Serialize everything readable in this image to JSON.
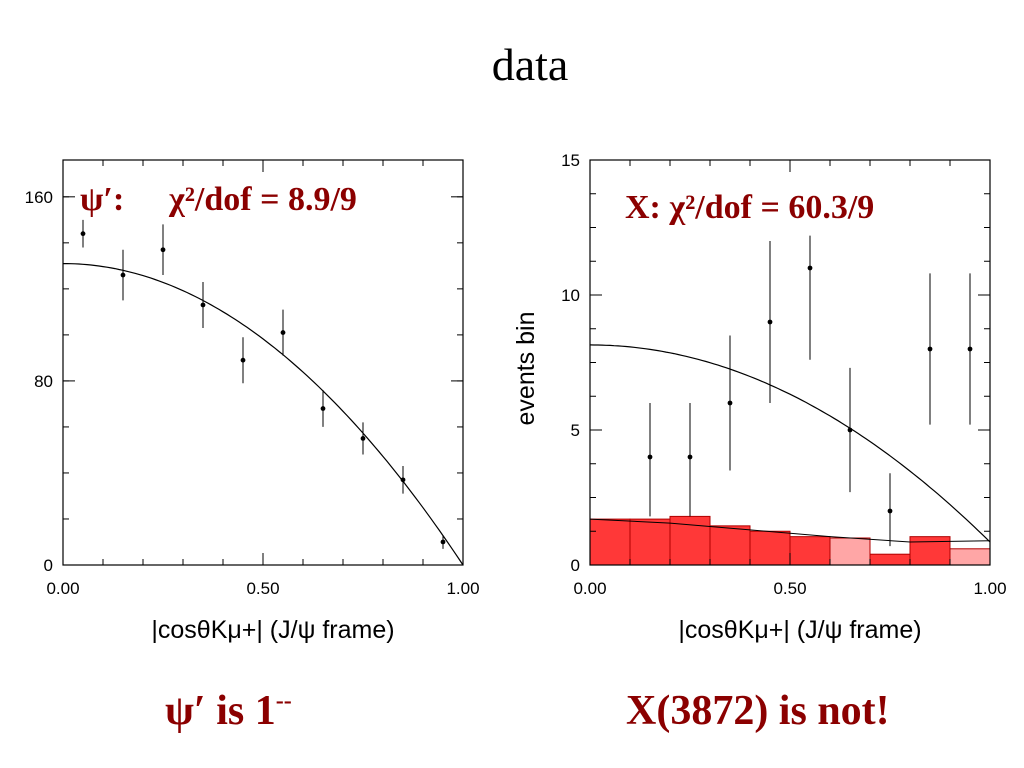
{
  "slide": {
    "title": "data",
    "left_caption": "ψ′ is 1",
    "left_caption_sup": "--",
    "right_caption": "X(3872) is not!"
  },
  "colors": {
    "annotation": "#8b0000",
    "background_fill": "#ff0000",
    "axes": "#000000"
  },
  "chart_data": [
    {
      "type": "scatter",
      "panel": "left",
      "annotation": {
        "prefix": "ψ′:",
        "text": "χ²/dof = 8.9/9"
      },
      "xlabel": "|cosθKμ+| (J/ψ frame)",
      "ylabel": "",
      "xlim": [
        0,
        1
      ],
      "ylim": [
        0,
        176
      ],
      "x_ticks": [
        0.0,
        0.5,
        1.0
      ],
      "x_tick_labels": [
        "0.00",
        "0.50",
        "1.00"
      ],
      "y_ticks": [
        0,
        80,
        160
      ],
      "y_tick_labels": [
        "0",
        "80",
        "160"
      ],
      "points": [
        {
          "x": 0.05,
          "y": 144,
          "err": 6
        },
        {
          "x": 0.15,
          "y": 126,
          "err": 11
        },
        {
          "x": 0.25,
          "y": 137,
          "err": 11
        },
        {
          "x": 0.35,
          "y": 113,
          "err": 10
        },
        {
          "x": 0.45,
          "y": 89,
          "err": 10
        },
        {
          "x": 0.55,
          "y": 101,
          "err": 10
        },
        {
          "x": 0.65,
          "y": 68,
          "err": 8
        },
        {
          "x": 0.75,
          "y": 55,
          "err": 7
        },
        {
          "x": 0.85,
          "y": 37,
          "err": 6
        },
        {
          "x": 0.95,
          "y": 10,
          "err": 3
        }
      ],
      "fit_curve": {
        "form": "A*(1-x^2)",
        "A": 131
      }
    },
    {
      "type": "scatter",
      "panel": "right",
      "annotation": {
        "prefix": "",
        "text": "X: χ²/dof = 60.3/9"
      },
      "xlabel": "|cosθKμ+| (J/ψ frame)",
      "ylabel": "events bin",
      "xlim": [
        0,
        1
      ],
      "ylim": [
        0,
        15
      ],
      "x_ticks": [
        0.0,
        0.5,
        1.0
      ],
      "x_tick_labels": [
        "0.00",
        "0.50",
        "1.00"
      ],
      "y_ticks": [
        0,
        5,
        10,
        15
      ],
      "y_tick_labels": [
        "0",
        "5",
        "10",
        "15"
      ],
      "points": [
        {
          "x": 0.15,
          "y": 4,
          "err_low": 2.2,
          "err_high": 2.0
        },
        {
          "x": 0.25,
          "y": 4,
          "err_low": 2.2,
          "err_high": 2.0
        },
        {
          "x": 0.35,
          "y": 6,
          "err_low": 2.5,
          "err_high": 2.5
        },
        {
          "x": 0.45,
          "y": 9,
          "err_low": 3.0,
          "err_high": 3.0
        },
        {
          "x": 0.55,
          "y": 11,
          "err_low": 3.4,
          "err_high": 1.2
        },
        {
          "x": 0.65,
          "y": 5,
          "err_low": 2.3,
          "err_high": 2.3
        },
        {
          "x": 0.75,
          "y": 2,
          "err_low": 1.3,
          "err_high": 1.4
        },
        {
          "x": 0.85,
          "y": 8,
          "err_low": 2.8,
          "err_high": 2.8
        },
        {
          "x": 0.95,
          "y": 8,
          "err_low": 2.8,
          "err_high": 2.8
        }
      ],
      "fit_curve": {
        "form": "A*(1-x^2)+B",
        "A": 7.3,
        "B": 0.85
      },
      "background_hist": {
        "bin_width": 0.1,
        "values": [
          1.7,
          1.7,
          1.8,
          1.45,
          1.25,
          1.05,
          1.0,
          0.4,
          1.05,
          0.6
        ]
      },
      "background_curve": [
        {
          "x": 0.0,
          "y": 1.7
        },
        {
          "x": 0.2,
          "y": 1.55
        },
        {
          "x": 0.4,
          "y": 1.3
        },
        {
          "x": 0.6,
          "y": 1.05
        },
        {
          "x": 0.8,
          "y": 0.85
        },
        {
          "x": 1.0,
          "y": 0.9
        }
      ]
    }
  ]
}
